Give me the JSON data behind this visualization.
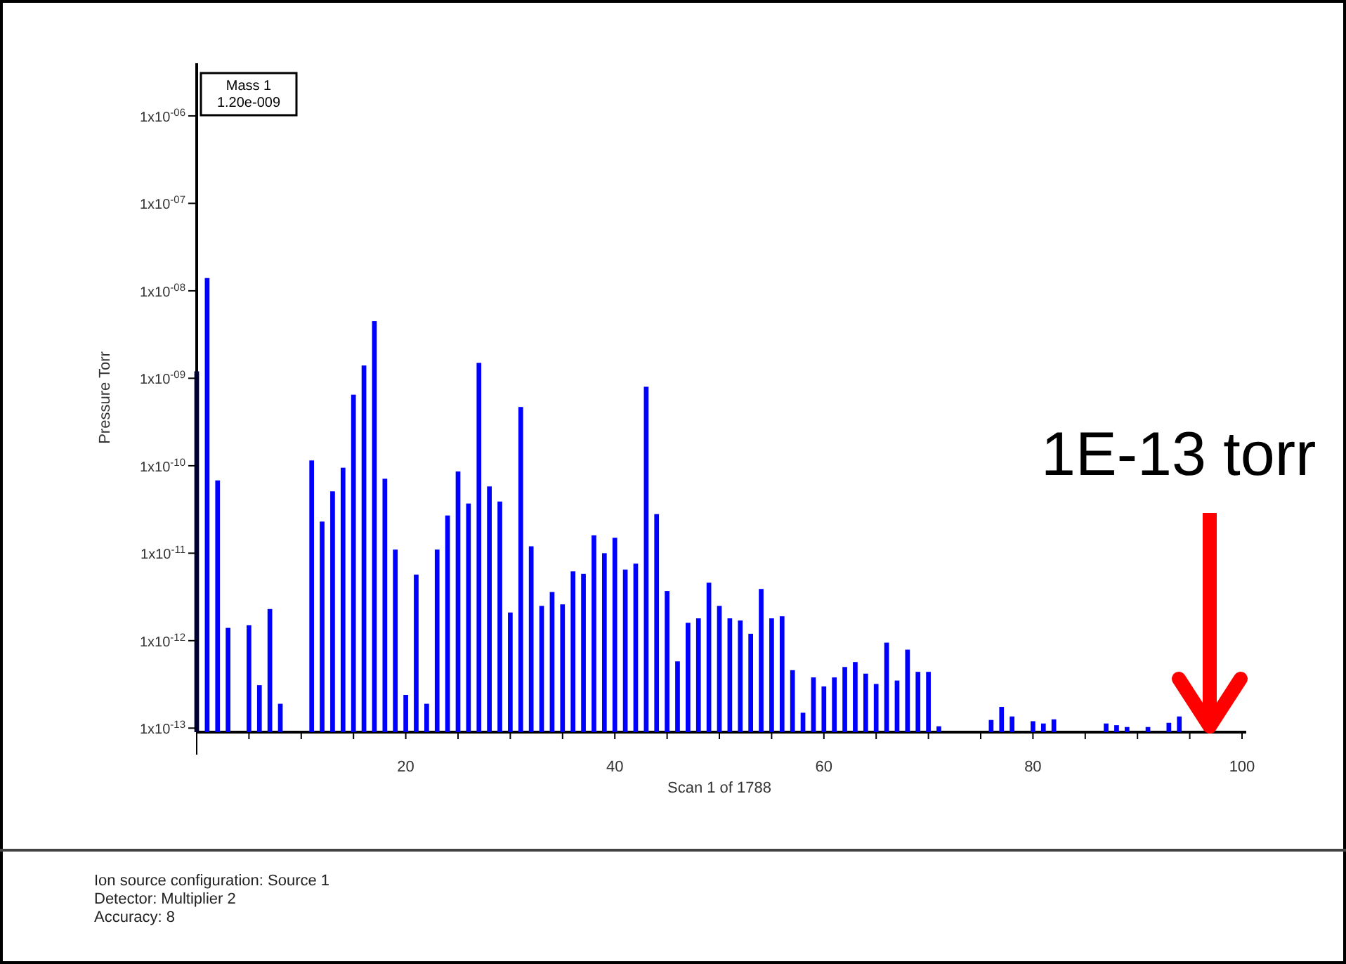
{
  "chart_data": {
    "type": "bar",
    "xlabel": "Scan 1 of 1788",
    "ylabel": "Pressure Torr",
    "log": "y",
    "grid": false,
    "xlim": [
      0,
      100
    ],
    "xticks": [
      {
        "value": 0,
        "label": null
      },
      {
        "value": 5,
        "label": null
      },
      {
        "value": 10,
        "label": null
      },
      {
        "value": 15,
        "label": null
      },
      20,
      {
        "value": 25,
        "label": null
      },
      {
        "value": 30,
        "label": null
      },
      {
        "value": 35,
        "label": null
      },
      40,
      {
        "value": 45,
        "label": null
      },
      {
        "value": 50,
        "label": null
      },
      {
        "value": 55,
        "label": null
      },
      60,
      {
        "value": 65,
        "label": null
      },
      {
        "value": 70,
        "label": null
      },
      {
        "value": 75,
        "label": null
      },
      80,
      {
        "value": 85,
        "label": null
      },
      {
        "value": 90,
        "label": null
      },
      {
        "value": 95,
        "label": null
      },
      100
    ],
    "ylim": [
      9e-14,
      4e-06
    ],
    "yticks": [
      {
        "value": 1e-13,
        "label": "1x10$^{-13}$"
      },
      {
        "value": 1e-12,
        "label": "1x10$^{-12}$"
      },
      {
        "value": 1e-11,
        "label": "1x10$^{-11}$"
      },
      {
        "value": 1e-10,
        "label": "1x10$^{-10}$"
      },
      {
        "value": 1e-09,
        "label": "1x10$^{-09}$"
      },
      {
        "value": 1e-08,
        "label": "1x10$^{-08}$"
      },
      {
        "value": 1e-07,
        "label": "1x10$^{-07}$"
      },
      {
        "value": 1e-06,
        "label": "1x10$^{-06}$"
      }
    ],
    "series": [
      {
        "color": "#0000ff",
        "x": [
          1,
          2,
          3,
          5,
          6,
          7,
          8,
          11,
          12,
          13,
          14,
          15,
          16,
          17,
          18,
          19,
          20,
          21,
          22,
          23,
          24,
          25,
          26,
          27,
          28,
          29,
          30,
          31,
          32,
          33,
          34,
          35,
          36,
          37,
          38,
          39,
          40,
          41,
          42,
          43,
          44,
          45,
          46,
          47,
          48,
          49,
          50,
          51,
          52,
          53,
          54,
          55,
          56,
          57,
          58,
          59,
          60,
          61,
          62,
          63,
          64,
          65,
          66,
          67,
          68,
          69,
          70,
          71,
          76,
          77,
          78,
          80,
          81,
          82,
          87,
          88,
          89,
          91,
          93,
          94
        ],
        "values": [
          1.4e-08,
          6.8e-11,
          1.4e-12,
          1.5e-12,
          3.1e-13,
          2.3e-12,
          1.9e-13,
          1.15e-10,
          2.3e-11,
          5.1e-11,
          9.5e-11,
          6.5e-10,
          1.4e-09,
          4.5e-09,
          7.1e-11,
          1.1e-11,
          2.4e-13,
          5.7e-12,
          1.9e-13,
          1.1e-11,
          2.7e-11,
          8.6e-11,
          3.7e-11,
          1.5e-09,
          5.8e-11,
          3.9e-11,
          2.1e-12,
          4.7e-10,
          1.2e-11,
          2.5e-12,
          3.6e-12,
          2.6e-12,
          6.2e-12,
          5.8e-12,
          1.6e-11,
          1e-11,
          1.5e-11,
          6.5e-12,
          7.6e-12,
          8e-10,
          2.8e-11,
          3.7e-12,
          5.8e-13,
          1.6e-12,
          1.8e-12,
          4.6e-12,
          2.5e-12,
          1.8e-12,
          1.7e-12,
          1.2e-12,
          3.9e-12,
          1.8e-12,
          1.9e-12,
          4.6e-13,
          1.5e-13,
          3.8e-13,
          3e-13,
          3.8e-13,
          5e-13,
          5.7e-13,
          4.2e-13,
          3.2e-13,
          9.5e-13,
          3.5e-13,
          7.9e-13,
          4.4e-13,
          4.4e-13,
          1.05e-13,
          1.24e-13,
          1.75e-13,
          1.36e-13,
          1.2e-13,
          1.13e-13,
          1.26e-13,
          1.13e-13,
          1.08e-13,
          1.03e-13,
          1.03e-13,
          1.15e-13,
          1.36e-13
        ]
      },
      {
        "color": "#000033",
        "x": [
          0
        ],
        "values": [
          1.2e-09
        ]
      }
    ],
    "annotations": [
      "Mass 1\n1.20e-009",
      "1E-13 torr",
      "Ion source configuration: Source 1",
      "Detector: Multiplier 2",
      "Accuracy: 8"
    ]
  }
}
